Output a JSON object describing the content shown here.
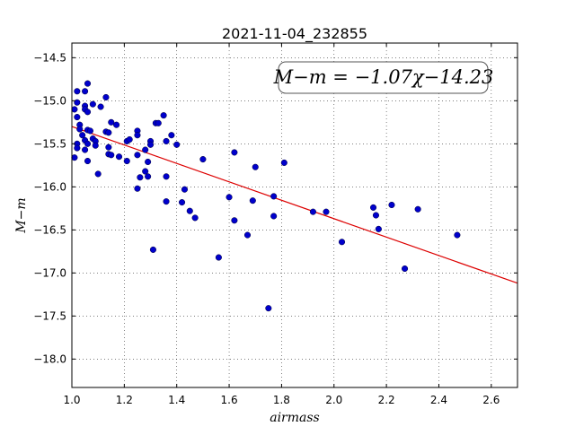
{
  "chart_data": {
    "type": "scatter",
    "title": "2021-11-04_232855",
    "xlabel": "airmass",
    "ylabel": "M−m",
    "xlim": [
      1.0,
      2.7
    ],
    "ylim": [
      -18.33,
      -14.33
    ],
    "y_inverted": true,
    "grid": true,
    "x_ticks": [
      1.0,
      1.2,
      1.4,
      1.6,
      1.8,
      2.0,
      2.2,
      2.4,
      2.6
    ],
    "x_tick_labels": [
      "1.0",
      "1.2",
      "1.4",
      "1.6",
      "1.8",
      "2.0",
      "2.2",
      "2.4",
      "2.6"
    ],
    "y_ticks": [
      -14.5,
      -15.0,
      -15.5,
      -16.0,
      -16.5,
      -17.0,
      -17.5,
      -18.0
    ],
    "y_tick_labels": [
      "−14.5",
      "−15.0",
      "−15.5",
      "−16.0",
      "−16.5",
      "−17.0",
      "−17.5",
      "−18.0"
    ],
    "annotation": "M−m = −1.07χ−14.23",
    "colors": {
      "points": "#0000cc",
      "fit_line": "#dd0000"
    },
    "fit": {
      "slope": -1.07,
      "intercept": -14.23
    },
    "points": [
      [
        1.01,
        -15.1
      ],
      [
        1.02,
        -14.89
      ],
      [
        1.02,
        -15.02
      ],
      [
        1.02,
        -15.19
      ],
      [
        1.03,
        -15.28
      ],
      [
        1.03,
        -15.33
      ],
      [
        1.02,
        -15.5
      ],
      [
        1.02,
        -15.55
      ],
      [
        1.01,
        -15.66
      ],
      [
        1.04,
        -15.4
      ],
      [
        1.05,
        -14.89
      ],
      [
        1.06,
        -14.8
      ],
      [
        1.05,
        -15.06
      ],
      [
        1.05,
        -15.1
      ],
      [
        1.06,
        -15.13
      ],
      [
        1.06,
        -15.34
      ],
      [
        1.05,
        -15.46
      ],
      [
        1.06,
        -15.5
      ],
      [
        1.05,
        -15.57
      ],
      [
        1.06,
        -15.7
      ],
      [
        1.08,
        -15.04
      ],
      [
        1.07,
        -15.35
      ],
      [
        1.08,
        -15.44
      ],
      [
        1.09,
        -15.47
      ],
      [
        1.09,
        -15.52
      ],
      [
        1.11,
        -15.07
      ],
      [
        1.1,
        -15.85
      ],
      [
        1.13,
        -14.96
      ],
      [
        1.13,
        -15.36
      ],
      [
        1.14,
        -15.37
      ],
      [
        1.15,
        -15.25
      ],
      [
        1.17,
        -15.28
      ],
      [
        1.14,
        -15.54
      ],
      [
        1.14,
        -15.62
      ],
      [
        1.15,
        -15.63
      ],
      [
        1.18,
        -15.65
      ],
      [
        1.21,
        -15.47
      ],
      [
        1.22,
        -15.45
      ],
      [
        1.21,
        -15.7
      ],
      [
        1.25,
        -15.35
      ],
      [
        1.25,
        -15.4
      ],
      [
        1.25,
        -15.63
      ],
      [
        1.26,
        -15.89
      ],
      [
        1.25,
        -16.02
      ],
      [
        1.28,
        -15.57
      ],
      [
        1.29,
        -15.71
      ],
      [
        1.28,
        -15.82
      ],
      [
        1.29,
        -15.88
      ],
      [
        1.3,
        -15.47
      ],
      [
        1.3,
        -15.51
      ],
      [
        1.32,
        -15.26
      ],
      [
        1.33,
        -15.26
      ],
      [
        1.35,
        -15.17
      ],
      [
        1.36,
        -15.47
      ],
      [
        1.38,
        -15.4
      ],
      [
        1.36,
        -15.88
      ],
      [
        1.36,
        -16.17
      ],
      [
        1.31,
        -16.73
      ],
      [
        1.4,
        -15.51
      ],
      [
        1.42,
        -16.18
      ],
      [
        1.43,
        -16.03
      ],
      [
        1.45,
        -16.28
      ],
      [
        1.47,
        -16.36
      ],
      [
        1.5,
        -15.68
      ],
      [
        1.56,
        -16.82
      ],
      [
        1.6,
        -16.12
      ],
      [
        1.62,
        -15.6
      ],
      [
        1.62,
        -16.39
      ],
      [
        1.67,
        -16.56
      ],
      [
        1.69,
        -16.16
      ],
      [
        1.7,
        -15.77
      ],
      [
        1.75,
        -17.41
      ],
      [
        1.77,
        -16.34
      ],
      [
        1.77,
        -16.11
      ],
      [
        1.81,
        -15.72
      ],
      [
        1.92,
        -16.29
      ],
      [
        1.97,
        -16.29
      ],
      [
        2.03,
        -16.64
      ],
      [
        2.15,
        -16.24
      ],
      [
        2.16,
        -16.33
      ],
      [
        2.17,
        -16.49
      ],
      [
        2.22,
        -16.21
      ],
      [
        2.27,
        -16.95
      ],
      [
        2.32,
        -16.26
      ],
      [
        2.47,
        -16.56
      ]
    ]
  }
}
